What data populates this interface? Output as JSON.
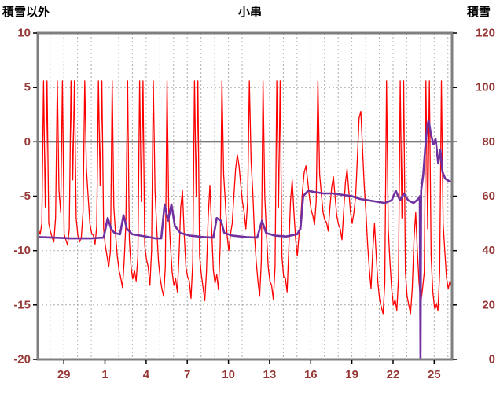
{
  "header": {
    "left": "積雪以外",
    "center": "小串",
    "right": "積雪"
  },
  "colors": {
    "background": "#FFFFFF",
    "red_series": "#FF0000",
    "purple_series": "#7030A0",
    "grid": "#ADADAD",
    "frame": "#7F7F7F",
    "zero_line": "#4D4D4D",
    "tick_mark": "#000000",
    "tick_label": "#953735"
  },
  "chart_data": {
    "type": "line",
    "title": "小串",
    "grid": true,
    "legend": "none",
    "x_axis": {
      "day_range": [
        0.1,
        30.3
      ],
      "tick_positions_days": [
        2,
        5,
        8,
        11,
        14,
        17,
        20,
        23,
        26,
        29
      ],
      "tick_labels": [
        "29",
        "1",
        "4",
        "7",
        "10",
        "13",
        "16",
        "19",
        "22",
        "25"
      ],
      "gridline_every_day": 1
    },
    "left_axis": {
      "label": "積雪以外",
      "range": [
        -20,
        10
      ],
      "ticks": [
        10,
        5,
        0,
        -5,
        -10,
        -15,
        -20
      ]
    },
    "right_axis": {
      "label": "積雪",
      "range": [
        0,
        120
      ],
      "ticks": [
        120,
        100,
        80,
        60,
        40,
        20,
        0
      ]
    },
    "series": [
      {
        "name": "積雪以外",
        "axis": "left",
        "color": "#FF0000",
        "x_start": 0.15,
        "x_step": 0.125,
        "values": [
          -8,
          -8.5,
          -7.5,
          5.6,
          -6,
          5.6,
          -7.5,
          -8.2,
          -8.8,
          -9.2,
          -7,
          5.6,
          -4.5,
          -6.5,
          5.6,
          -8.5,
          -9,
          -9.5,
          -8,
          5.6,
          -3.5,
          5.6,
          -7,
          -8.6,
          -9.2,
          -8.8,
          -6.5,
          5.6,
          -2.5,
          -5,
          -7.5,
          -8.4,
          -8.6,
          -9.4,
          -7.8,
          5.6,
          -4,
          5.6,
          -8,
          -9.5,
          -10.5,
          -11.5,
          -10,
          5.6,
          -6,
          -8.5,
          -10.5,
          -11.8,
          -12.5,
          -13.4,
          -11,
          -7.5,
          5.6,
          -9,
          -11.5,
          -12.6,
          -11.8,
          -12.8,
          -10.5,
          5.6,
          -5.5,
          5.6,
          -9.5,
          -10.8,
          -11.5,
          -13.2,
          -10,
          5.6,
          -4.5,
          -8,
          -11,
          -12.5,
          -13.5,
          -14.2,
          -11.5,
          5.6,
          -6.5,
          -9.5,
          -12,
          -13.2,
          -12.6,
          -13.8,
          -10.5,
          -6,
          -4.5,
          -8.5,
          -11.5,
          -12.4,
          -12.8,
          -14.4,
          -11,
          5.6,
          -5,
          5.6,
          -10.5,
          -12.2,
          -13.4,
          -14.6,
          -12,
          -7,
          -4,
          -8,
          -11.8,
          -13,
          -12.2,
          -13.6,
          -9.5,
          5.6,
          -3,
          -5.5,
          -8.5,
          -10,
          -8.5,
          -7.5,
          -5,
          -2.5,
          -1.2,
          -2.2,
          -4,
          -5.5,
          -6.5,
          -8,
          -5.5,
          5.6,
          -1.8,
          -4.5,
          -8.5,
          -11,
          -12.8,
          -14.2,
          -11,
          5.6,
          -5,
          -8.5,
          -11.5,
          -12.8,
          -13.2,
          -14.5,
          -11.5,
          5.6,
          -6,
          5.6,
          -10.5,
          -12.4,
          -12.5,
          -13.8,
          -10,
          -5.5,
          -3.5,
          -6.5,
          -9,
          -10.5,
          -8.5,
          -7,
          -4.5,
          -2.8,
          -2.2,
          -3.5,
          -5,
          -6.2,
          -6.8,
          -7.6,
          -5.5,
          5.6,
          -3,
          -4.8,
          -6.5,
          -7.2,
          -7.4,
          -8.2,
          -6,
          -4.2,
          -3.2,
          -5,
          -6.8,
          -7.6,
          -8,
          -9,
          -6.5,
          -3.8,
          -2.5,
          -4.5,
          -6.5,
          -7.5,
          -6.5,
          -5,
          -1.5,
          2.2,
          2.8,
          -0.5,
          -4,
          -6.5,
          -9.5,
          -11.8,
          -13.5,
          -10,
          -7.5,
          -10.5,
          -13,
          -14.5,
          -15.2,
          -15.8,
          -13,
          5.6,
          -8,
          -11,
          -13.5,
          -15,
          -14.5,
          -15.5,
          -12.5,
          5.6,
          -7,
          5.6,
          -12,
          -14.2,
          -15,
          -15.8,
          -13.5,
          -9,
          -6.5,
          -10,
          -13,
          -14.8,
          -13.5,
          -12,
          5.6,
          -8,
          5.6,
          -10.5,
          -13.8,
          -15.3,
          -14.8,
          -15.5,
          -12,
          5.6,
          -7.5,
          -10,
          -12.5,
          -13.5,
          -12.8,
          -13.4,
          -11.5,
          -10.8,
          -11.2,
          -11.8
        ]
      },
      {
        "name": "積雪",
        "axis": "right",
        "color": "#7030A0",
        "points": [
          [
            0.15,
            45
          ],
          [
            1.2,
            44.8
          ],
          [
            2.5,
            44.5
          ],
          [
            4.0,
            44.5
          ],
          [
            4.9,
            44.8
          ],
          [
            5.2,
            52
          ],
          [
            5.45,
            48
          ],
          [
            5.7,
            46.5
          ],
          [
            6.1,
            46
          ],
          [
            6.35,
            53
          ],
          [
            6.6,
            48
          ],
          [
            7.0,
            46
          ],
          [
            7.6,
            45.5
          ],
          [
            8.2,
            45
          ],
          [
            8.7,
            44.5
          ],
          [
            9.1,
            44.5
          ],
          [
            9.35,
            57
          ],
          [
            9.6,
            51
          ],
          [
            9.85,
            57
          ],
          [
            10.1,
            49
          ],
          [
            10.5,
            46.5
          ],
          [
            11.2,
            45.5
          ],
          [
            12.2,
            45
          ],
          [
            12.9,
            44.8
          ],
          [
            13.15,
            52
          ],
          [
            13.45,
            51
          ],
          [
            13.7,
            46.5
          ],
          [
            14.3,
            45.5
          ],
          [
            15.3,
            45
          ],
          [
            16.1,
            44.8
          ],
          [
            16.45,
            51
          ],
          [
            16.75,
            46.5
          ],
          [
            17.4,
            45.5
          ],
          [
            18.2,
            45.2
          ],
          [
            19.0,
            46
          ],
          [
            19.25,
            48
          ],
          [
            19.45,
            60
          ],
          [
            19.8,
            62
          ],
          [
            20.3,
            61.5
          ],
          [
            20.9,
            61
          ],
          [
            21.6,
            61
          ],
          [
            22.3,
            60.5
          ],
          [
            23.0,
            60
          ],
          [
            23.6,
            59
          ],
          [
            24.2,
            58.5
          ],
          [
            24.8,
            58
          ],
          [
            25.4,
            57.5
          ],
          [
            25.9,
            58.5
          ],
          [
            26.2,
            62
          ],
          [
            26.5,
            58.5
          ],
          [
            26.8,
            61
          ],
          [
            27.1,
            58.5
          ],
          [
            27.5,
            57.5
          ],
          [
            27.85,
            59
          ],
          [
            27.95,
            60
          ],
          [
            28.0,
            0
          ],
          [
            28.05,
            62
          ],
          [
            28.2,
            68
          ],
          [
            28.35,
            78
          ],
          [
            28.5,
            86
          ],
          [
            28.6,
            88
          ],
          [
            28.75,
            83
          ],
          [
            28.95,
            79
          ],
          [
            29.1,
            81
          ],
          [
            29.3,
            72
          ],
          [
            29.45,
            77
          ],
          [
            29.6,
            69
          ],
          [
            29.8,
            66.5
          ],
          [
            30.1,
            65.5
          ],
          [
            30.6,
            65
          ]
        ]
      }
    ]
  }
}
